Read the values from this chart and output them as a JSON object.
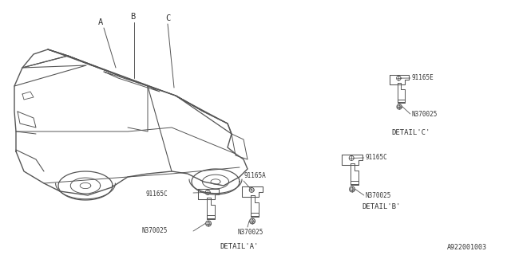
{
  "bg_color": "#ffffff",
  "line_color": "#555555",
  "text_color": "#333333",
  "diagram_id": "A922001003",
  "detail_a_label": "DETAIL'A'",
  "detail_b_label": "DETAIL'B'",
  "detail_c_label": "DETAIL'C'",
  "pn_91165A": "91165A",
  "pn_91165C": "91165C",
  "pn_91165E": "91165E",
  "pn_N370025": "N370025",
  "callout_A": "A",
  "callout_B": "B",
  "callout_C": "C"
}
